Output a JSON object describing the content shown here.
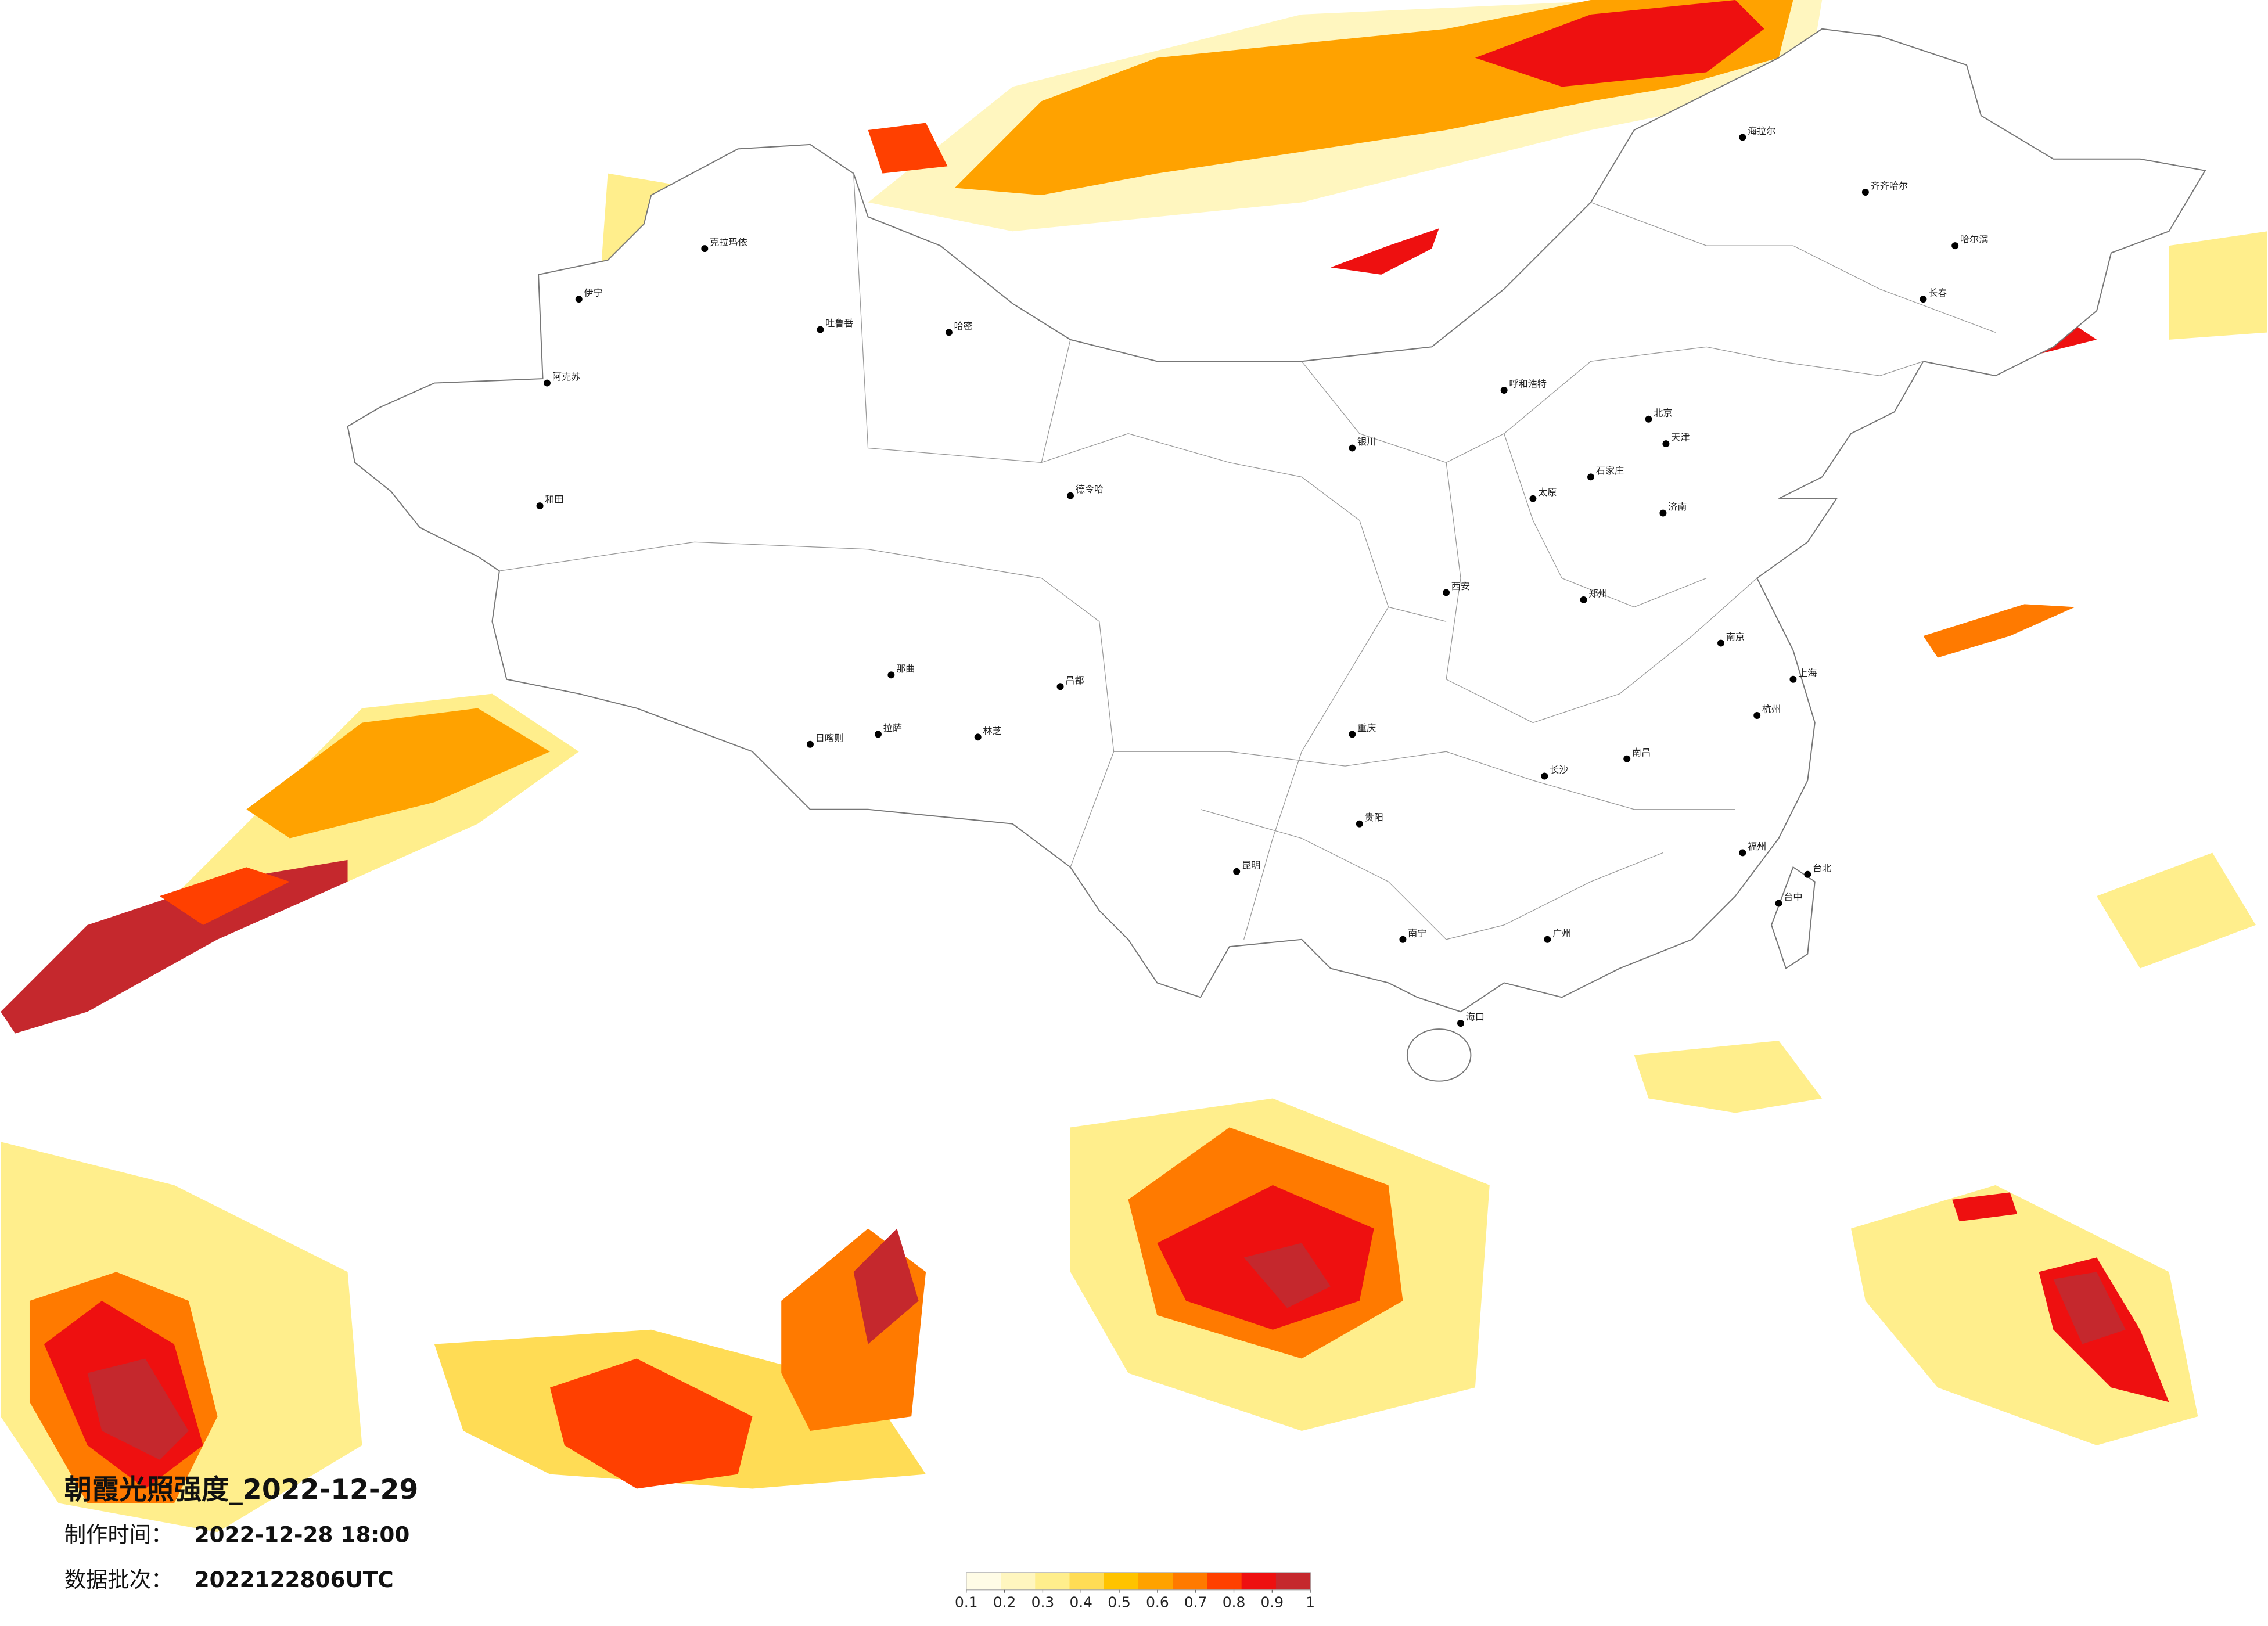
{
  "title": "朝霞光照强度_2022-12-29",
  "made_label": "制作时间：",
  "made_time": "2022-12-28 18:00",
  "batch_label": "数据批次：",
  "batch": "2022122806UTC",
  "legend": {
    "ticks": [
      0.1,
      0.2,
      0.3,
      0.4,
      0.5,
      0.6,
      0.7,
      0.8,
      0.9,
      1
    ],
    "colors": [
      "#fffce6",
      "#fff6bf",
      "#ffee8c",
      "#ffdc55",
      "#ffc300",
      "#ffa200",
      "#ff7a00",
      "#ff4000",
      "#ee1010",
      "#c5282d"
    ]
  },
  "cities": [
    "伊宁",
    "阿克苏",
    "和田",
    "哈密",
    "吐鲁番",
    "克拉玛依",
    "德令哈",
    "那曲",
    "拉萨",
    "日喀则",
    "林芝",
    "昌都",
    "海拉尔",
    "齐齐哈尔",
    "哈尔滨",
    "长春",
    "呼和浩特",
    "北京",
    "天津",
    "石家庄",
    "太原",
    "济南",
    "郑州",
    "西安",
    "银川",
    "重庆",
    "南京",
    "上海",
    "杭州",
    "长沙",
    "南昌",
    "福州",
    "广州",
    "南宁",
    "昆明",
    "贵阳",
    "海口",
    "台北",
    "台中"
  ]
}
